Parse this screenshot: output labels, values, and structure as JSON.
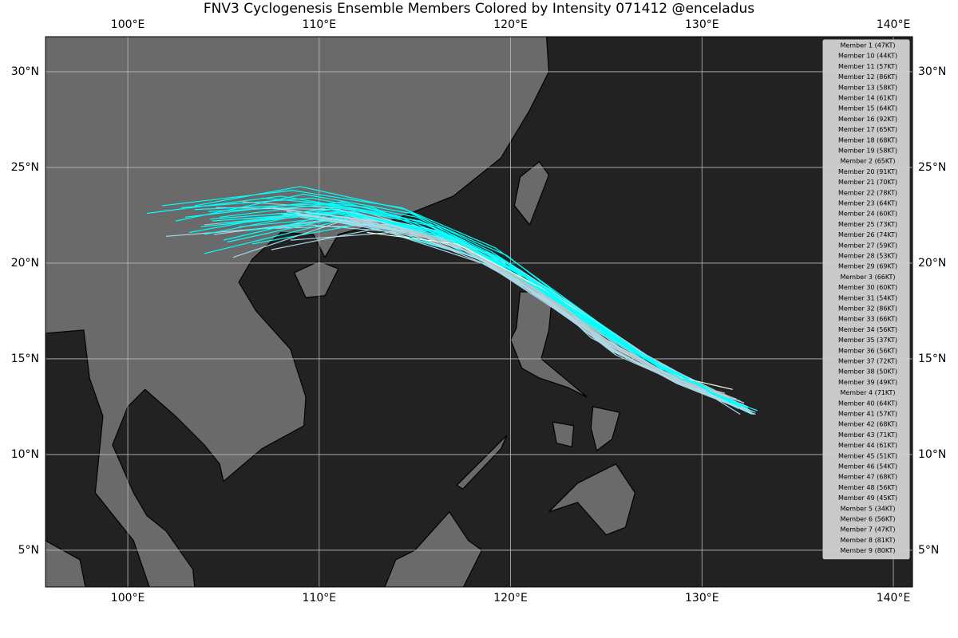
{
  "chart_data": {
    "type": "track-map",
    "title": "FNV3 Cyclogenesis Ensemble Members Colored by Intensity 071412 @enceladus",
    "xlim": [
      95.7,
      141.0
    ],
    "ylim": [
      3.08,
      31.83
    ],
    "xticks": [
      {
        "value": 100,
        "label": "100°E"
      },
      {
        "value": 110,
        "label": "110°E"
      },
      {
        "value": 120,
        "label": "120°E"
      },
      {
        "value": 130,
        "label": "130°E"
      },
      {
        "value": 140,
        "label": "140°E"
      }
    ],
    "yticks": [
      {
        "value": 5,
        "label": "5°N"
      },
      {
        "value": 10,
        "label": "10°N"
      },
      {
        "value": 15,
        "label": "15°N"
      },
      {
        "value": 20,
        "label": "20°N"
      },
      {
        "value": 25,
        "label": "25°N"
      },
      {
        "value": 30,
        "label": "30°N"
      }
    ],
    "grid": true,
    "legend": "upper right",
    "series": [
      {
        "name": "Member 1 (47KT)",
        "color": "#c0c0c0",
        "x": [
          132.3,
          128.5,
          125,
          121,
          116,
          110,
          104
        ],
        "values": [
          12.4,
          14,
          16,
          19,
          21.5,
          22.6,
          22
        ]
      },
      {
        "name": "Member 10 (44KT)",
        "color": "#c0c0c0",
        "x": [
          131.8,
          128,
          124.8,
          121.5,
          117.5,
          112,
          106
        ],
        "values": [
          12.9,
          14.3,
          16.3,
          18.6,
          21,
          22.8,
          23.2
        ]
      },
      {
        "name": "Member 11 (57KT)",
        "color": "#add8e6",
        "x": [
          132,
          128.2,
          124,
          120.5,
          115.5,
          109.5,
          102
        ],
        "values": [
          12.1,
          14.5,
          17,
          19.5,
          21.5,
          22,
          21.4
        ]
      },
      {
        "name": "Member 12 (86KT)",
        "color": "#00ffff",
        "x": [
          131.5,
          127,
          123.5,
          119.5,
          114,
          108,
          101
        ],
        "values": [
          12.6,
          14.8,
          17.5,
          20.2,
          22.5,
          23.5,
          22.6
        ]
      },
      {
        "name": "Member 13 (58KT)",
        "color": "#add8e6",
        "x": [
          132.6,
          128,
          124.5,
          121,
          117,
          111.5,
          104.5
        ],
        "values": [
          12.2,
          14.6,
          16.8,
          19.3,
          21.2,
          22.4,
          21.5
        ]
      },
      {
        "name": "Member 14 (61KT)",
        "color": "#add8e6",
        "x": [
          132.2,
          127.8,
          124.2,
          122,
          119,
          113.5,
          107
        ],
        "values": [
          12.7,
          14.2,
          16.1,
          18.2,
          20.5,
          22,
          21.8
        ]
      },
      {
        "name": "Member 15 (64KT)",
        "color": "#00ffff",
        "x": [
          131.9,
          127.5,
          124,
          120,
          115,
          110.5,
          105
        ],
        "values": [
          12.4,
          14.9,
          17.2,
          19.8,
          21.2,
          22.5,
          21.2
        ]
      },
      {
        "name": "Member 16 (92KT)",
        "color": "#00ffff",
        "x": [
          132.5,
          127.3,
          123,
          119,
          114.5,
          109,
          103.5
        ],
        "values": [
          12.3,
          15,
          18,
          20.6,
          22.8,
          24,
          23
        ]
      },
      {
        "name": "Member 17 (65KT)",
        "color": "#00ffff",
        "x": [
          131.6,
          127.8,
          124.4,
          120.8,
          116,
          111,
          104
        ],
        "values": [
          12.8,
          14.4,
          16.6,
          19,
          21.3,
          22.2,
          20.5
        ]
      },
      {
        "name": "Member 18 (68KT)",
        "color": "#00ffff",
        "x": [
          132.1,
          128.3,
          125,
          121.8,
          117,
          111.8,
          106
        ],
        "values": [
          12.5,
          14.1,
          15.8,
          18.5,
          21,
          22.7,
          22.3
        ]
      },
      {
        "name": "Member 19 (58KT)",
        "color": "#add8e6",
        "x": [
          132.8,
          128.5,
          125.2,
          122.5,
          118.5,
          113,
          107.5
        ],
        "values": [
          12.2,
          13.9,
          15.5,
          17.8,
          20,
          21.8,
          20.7
        ]
      },
      {
        "name": "Member 2 (65KT)",
        "color": "#00ffff",
        "x": [
          131.7,
          127.6,
          123.8,
          120.3,
          116.2,
          111.2,
          104.8
        ],
        "values": [
          12.6,
          14.7,
          17.1,
          19.6,
          21.9,
          23.2,
          22.4
        ]
      },
      {
        "name": "Member 20 (91KT)",
        "color": "#00ffff",
        "x": [
          132,
          127.2,
          123.2,
          119.8,
          114.8,
          109.2,
          102.5
        ],
        "values": [
          12.4,
          15.1,
          17.8,
          20.4,
          22.6,
          23.6,
          22.2
        ]
      },
      {
        "name": "Member 21 (70KT)",
        "color": "#00ffff",
        "x": [
          131.4,
          127.4,
          124,
          121.2,
          116.8,
          112.5,
          106.5
        ],
        "values": [
          12.9,
          14.8,
          16.9,
          18.9,
          21.4,
          22.1,
          21
        ]
      },
      {
        "name": "Member 22 (78KT)",
        "color": "#00ffff",
        "x": [
          132.3,
          127.9,
          124.6,
          121.6,
          117.8,
          112.8,
          107
        ],
        "values": [
          12.3,
          14.5,
          16.4,
          18.4,
          20.8,
          22.9,
          23.4
        ]
      },
      {
        "name": "Member 23 (64KT)",
        "color": "#00ffff",
        "x": [
          131.8,
          128.1,
          124.3,
          120.6,
          116.4,
          110.8,
          103.8
        ],
        "values": [
          12.7,
          14.3,
          16.9,
          19.4,
          21.6,
          22.6,
          21.9
        ]
      },
      {
        "name": "Member 24 (60KT)",
        "color": "#add8e6",
        "x": [
          132.4,
          128.4,
          124.9,
          121.3,
          117.2,
          111.5,
          105.5
        ],
        "values": [
          12.5,
          14,
          16,
          18.8,
          21.1,
          22.3,
          20.3
        ]
      },
      {
        "name": "Member 25 (73KT)",
        "color": "#00ffff",
        "x": [
          131.9,
          127.7,
          123.9,
          119.9,
          115.3,
          110.2,
          104.2
        ],
        "values": [
          12.4,
          14.6,
          17.3,
          20,
          22.2,
          23,
          22.7
        ]
      },
      {
        "name": "Member 26 (74KT)",
        "color": "#00ffff",
        "x": [
          132.6,
          128.2,
          124.7,
          121.4,
          117.3,
          112.2,
          106.2
        ],
        "values": [
          12.1,
          14.2,
          16.3,
          18.7,
          21,
          22.4,
          21.7
        ]
      },
      {
        "name": "Member 27 (59KT)",
        "color": "#add8e6",
        "x": [
          131.5,
          127.1,
          123.4,
          120.7,
          117.9,
          113.8,
          108.5
        ],
        "values": [
          12.8,
          15.2,
          17.7,
          19.2,
          20.4,
          21.6,
          21.2
        ]
      },
      {
        "name": "Member 28 (53KT)",
        "color": "#add8e6",
        "x": [
          132.2,
          128.6,
          125.3,
          122.6,
          119.5,
          116,
          111
        ],
        "values": [
          12.6,
          13.8,
          15.4,
          17.5,
          19.6,
          21.5,
          22.8
        ]
      },
      {
        "name": "Member 29 (69KT)",
        "color": "#00ffff",
        "x": [
          131.7,
          127.5,
          123.6,
          120.1,
          115.7,
          110.4,
          103.2
        ],
        "values": [
          12.5,
          14.8,
          17.4,
          19.9,
          21.8,
          22.9,
          21.6
        ]
      },
      {
        "name": "Member 3 (66KT)",
        "color": "#00ffff",
        "x": [
          132.9,
          128.8,
          125.4,
          122.1,
          118.2,
          113.2,
          107.8
        ],
        "values": [
          12.3,
          13.7,
          15.6,
          18,
          20.3,
          21.9,
          22.6
        ]
      },
      {
        "name": "Member 30 (60KT)",
        "color": "#add8e6",
        "x": [
          131.6,
          127.3,
          123.7,
          120.4,
          116.1,
          111,
          104.6
        ],
        "values": [
          12.9,
          15,
          17.5,
          19.7,
          21.7,
          22.8,
          22.9
        ]
      },
      {
        "name": "Member 31 (54KT)",
        "color": "#add8e6",
        "x": [
          132.1,
          128,
          124.6,
          121.9,
          118.7,
          114.2,
          109
        ],
        "values": [
          12.4,
          14.3,
          16.2,
          18.1,
          20.1,
          21.7,
          22.4
        ]
      },
      {
        "name": "Member 32 (86KT)",
        "color": "#00ffff",
        "x": [
          131.3,
          126.8,
          122.8,
          119.2,
          114.3,
          108.6,
          101.8
        ],
        "values": [
          12.7,
          15.3,
          18.2,
          20.8,
          22.9,
          23.8,
          23
        ]
      },
      {
        "name": "Member 33 (66KT)",
        "color": "#00ffff",
        "x": [
          132.5,
          128.1,
          124.5,
          121.1,
          116.9,
          111.6,
          105.2
        ],
        "values": [
          12.2,
          14.4,
          16.7,
          19.1,
          21.3,
          22.5,
          21.1
        ]
      },
      {
        "name": "Member 34 (56KT)",
        "color": "#add8e6",
        "x": [
          132,
          128.7,
          125.5,
          122.8,
          120,
          116.5,
          112
        ],
        "values": [
          12.8,
          13.8,
          15.2,
          17.3,
          19.4,
          21.2,
          22.1
        ]
      },
      {
        "name": "Member 35 (37KT)",
        "color": "#c0c0c0",
        "x": [
          131.2,
          128.9,
          126.8,
          124.2,
          121.5,
          118.5,
          114.5
        ],
        "values": [
          13.2,
          13.8,
          15,
          16.8,
          18.5,
          20.5,
          21.8
        ]
      },
      {
        "name": "Member 36 (56KT)",
        "color": "#add8e6",
        "x": [
          132.7,
          128.3,
          124.8,
          121.7,
          118,
          113,
          107.2
        ],
        "values": [
          12.1,
          14,
          16,
          18.3,
          20.7,
          22.2,
          22.9
        ]
      },
      {
        "name": "Member 37 (72KT)",
        "color": "#00ffff",
        "x": [
          131.8,
          127.6,
          123.8,
          120.2,
          115.9,
          110.6,
          104
        ],
        "values": [
          12.6,
          14.7,
          17.2,
          19.7,
          21.7,
          22.8,
          21.5
        ]
      },
      {
        "name": "Member 38 (50KT)",
        "color": "#add8e6",
        "x": [
          132.3,
          128.4,
          125.1,
          122.4,
          119.2,
          115,
          110
        ],
        "values": [
          12.3,
          14.1,
          15.7,
          17.7,
          19.9,
          21.4,
          22.3
        ]
      },
      {
        "name": "Member 39 (49KT)",
        "color": "#c0c0c0",
        "x": [
          131.5,
          127.9,
          124.9,
          122.2,
          119.3,
          115.6,
          111.5
        ],
        "values": [
          12.9,
          14.4,
          15.9,
          17.9,
          19.8,
          21.3,
          22.5
        ]
      },
      {
        "name": "Member 4 (71KT)",
        "color": "#00ffff",
        "x": [
          132.4,
          127.8,
          124.1,
          120.7,
          116.5,
          111.3,
          105
        ],
        "values": [
          12.4,
          14.6,
          16.9,
          19.3,
          21.5,
          22.6,
          22.1
        ]
      },
      {
        "name": "Member 40 (64KT)",
        "color": "#00ffff",
        "x": [
          131.9,
          127.4,
          123.6,
          120,
          115.6,
          110.1,
          103.5
        ],
        "values": [
          12.7,
          14.9,
          17.4,
          19.9,
          22,
          23.1,
          22.8
        ]
      },
      {
        "name": "Member 41 (57KT)",
        "color": "#add8e6",
        "x": [
          132.6,
          128.5,
          125,
          121.9,
          118.3,
          113.6,
          108
        ],
        "values": [
          12.2,
          13.9,
          15.8,
          18.1,
          20.4,
          22,
          22.6
        ]
      },
      {
        "name": "Member 42 (68KT)",
        "color": "#00ffff",
        "x": [
          131.6,
          127.5,
          123.9,
          120.5,
          116.3,
          111.1,
          104.4
        ],
        "values": [
          12.8,
          14.8,
          17,
          19.5,
          21.6,
          22.7,
          22.2
        ]
      },
      {
        "name": "Member 43 (71KT)",
        "color": "#00ffff",
        "x": [
          132.2,
          127.9,
          124.4,
          121.2,
          117.1,
          112,
          105.8
        ],
        "values": [
          12.5,
          14.5,
          16.6,
          18.9,
          21.2,
          22.5,
          21.9
        ]
      },
      {
        "name": "Member 44 (61KT)",
        "color": "#add8e6",
        "x": [
          132.8,
          128.6,
          125.3,
          122.3,
          118.8,
          114.3,
          109.2
        ],
        "values": [
          12.1,
          13.8,
          15.5,
          17.6,
          19.9,
          21.7,
          22.5
        ]
      },
      {
        "name": "Member 45 (51KT)",
        "color": "#add8e6",
        "x": [
          131.4,
          128.2,
          125.4,
          122.9,
          120.1,
          116.4,
          112.3
        ],
        "values": [
          13,
          14.1,
          15.4,
          17.2,
          19.3,
          21.3,
          22.4
        ]
      },
      {
        "name": "Member 46 (54KT)",
        "color": "#add8e6",
        "x": [
          132.1,
          128.3,
          124.9,
          121.8,
          118.4,
          113.9,
          108.7
        ],
        "values": [
          12.4,
          14,
          15.9,
          18,
          20.2,
          21.8,
          22.6
        ]
      },
      {
        "name": "Member 47 (68KT)",
        "color": "#00ffff",
        "x": [
          131.7,
          127.2,
          123.4,
          119.7,
          115.2,
          109.8,
          103
        ],
        "values": [
          12.6,
          15,
          17.6,
          20.1,
          22.2,
          23.2,
          22.4
        ]
      },
      {
        "name": "Member 48 (56KT)",
        "color": "#add8e6",
        "x": [
          132.5,
          128.7,
          125.2,
          122.1,
          118.6,
          114,
          108.3
        ],
        "values": [
          12.2,
          13.7,
          15.6,
          17.9,
          20.1,
          21.8,
          22.7
        ]
      },
      {
        "name": "Member 49 (45KT)",
        "color": "#c0c0c0",
        "x": [
          131.3,
          128.8,
          126.4,
          123.9,
          121,
          117.4,
          113
        ],
        "values": [
          13.1,
          13.9,
          15.1,
          16.9,
          18.8,
          20.9,
          22.2
        ]
      },
      {
        "name": "Member 5 (34KT)",
        "color": "#ffffe0",
        "x": [
          131.6,
          129,
          126.9,
          124.5,
          121.8,
          117.2,
          112.5
        ],
        "values": [
          13.4,
          14,
          15.2,
          16.9,
          18.6,
          21,
          21.6
        ]
      },
      {
        "name": "Member 6 (56KT)",
        "color": "#add8e6",
        "x": [
          132.3,
          128.4,
          125,
          121.7,
          118.1,
          113.4,
          107.6
        ],
        "values": [
          12.3,
          14.1,
          16,
          18.2,
          20.5,
          22.1,
          22.9
        ]
      },
      {
        "name": "Member 7 (47KT)",
        "color": "#c0c0c0",
        "x": [
          131.9,
          128.6,
          125.7,
          123,
          120.2,
          116.8,
          112.8
        ],
        "values": [
          12.8,
          13.9,
          15.4,
          17.4,
          19.4,
          21.1,
          21.9
        ]
      },
      {
        "name": "Member 8 (81KT)",
        "color": "#00ffff",
        "x": [
          131.5,
          127.1,
          123.3,
          119.6,
          115.1,
          109.6,
          102.8
        ],
        "values": [
          12.7,
          15.1,
          17.7,
          20.2,
          22.4,
          23.4,
          22.9
        ]
      },
      {
        "name": "Member 9 (80KT)",
        "color": "#00ffff",
        "x": [
          132,
          127.7,
          124,
          120.4,
          116,
          110.7,
          104.3
        ],
        "values": [
          12.5,
          14.7,
          17.1,
          19.6,
          21.7,
          22.8,
          22.3
        ]
      }
    ]
  }
}
